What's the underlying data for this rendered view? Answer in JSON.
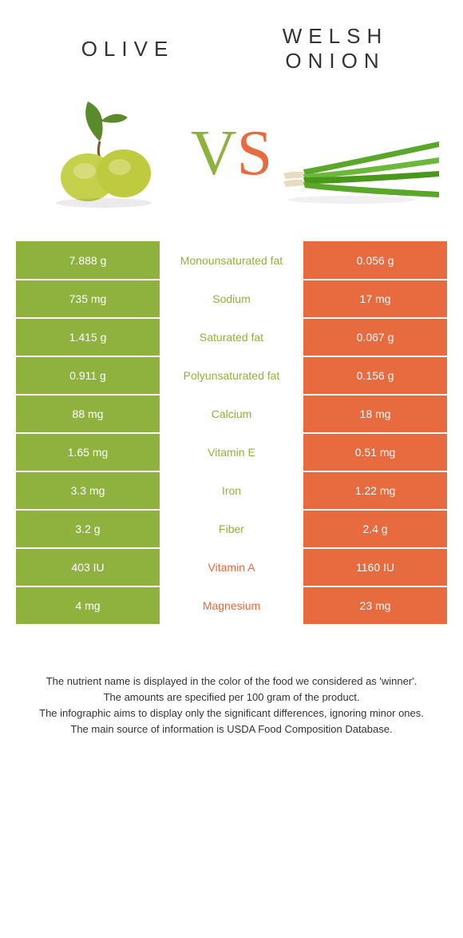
{
  "colors": {
    "left_bg": "#8fb23f",
    "right_bg": "#e86a3f",
    "left_text": "#8fb23f",
    "right_text": "#e86a3f",
    "white": "#ffffff"
  },
  "foods": {
    "left": {
      "title": "Olive",
      "icon": "olive"
    },
    "right": {
      "title": "Welsh Onion",
      "icon": "welsh-onion"
    }
  },
  "vs": {
    "v": "V",
    "s": "S"
  },
  "rows": [
    {
      "left": "7.888 g",
      "label": "Monounsaturated fat",
      "right": "0.056 g",
      "winner": "left"
    },
    {
      "left": "735 mg",
      "label": "Sodium",
      "right": "17 mg",
      "winner": "left"
    },
    {
      "left": "1.415 g",
      "label": "Saturated fat",
      "right": "0.067 g",
      "winner": "left"
    },
    {
      "left": "0.911 g",
      "label": "Polyunsaturated fat",
      "right": "0.156 g",
      "winner": "left"
    },
    {
      "left": "88 mg",
      "label": "Calcium",
      "right": "18 mg",
      "winner": "left"
    },
    {
      "left": "1.65 mg",
      "label": "Vitamin E",
      "right": "0.51 mg",
      "winner": "left"
    },
    {
      "left": "3.3 mg",
      "label": "Iron",
      "right": "1.22 mg",
      "winner": "left"
    },
    {
      "left": "3.2 g",
      "label": "Fiber",
      "right": "2.4 g",
      "winner": "left"
    },
    {
      "left": "403 IU",
      "label": "Vitamin A",
      "right": "1160 IU",
      "winner": "right"
    },
    {
      "left": "4 mg",
      "label": "Magnesium",
      "right": "23 mg",
      "winner": "right"
    }
  ],
  "notes": [
    "The nutrient name is displayed in the color of the food we considered as 'winner'.",
    "The amounts are specified per 100 gram of the product.",
    "The infographic aims to display only the significant differences, ignoring minor ones.",
    "The main source of information is USDA Food Composition Database."
  ]
}
